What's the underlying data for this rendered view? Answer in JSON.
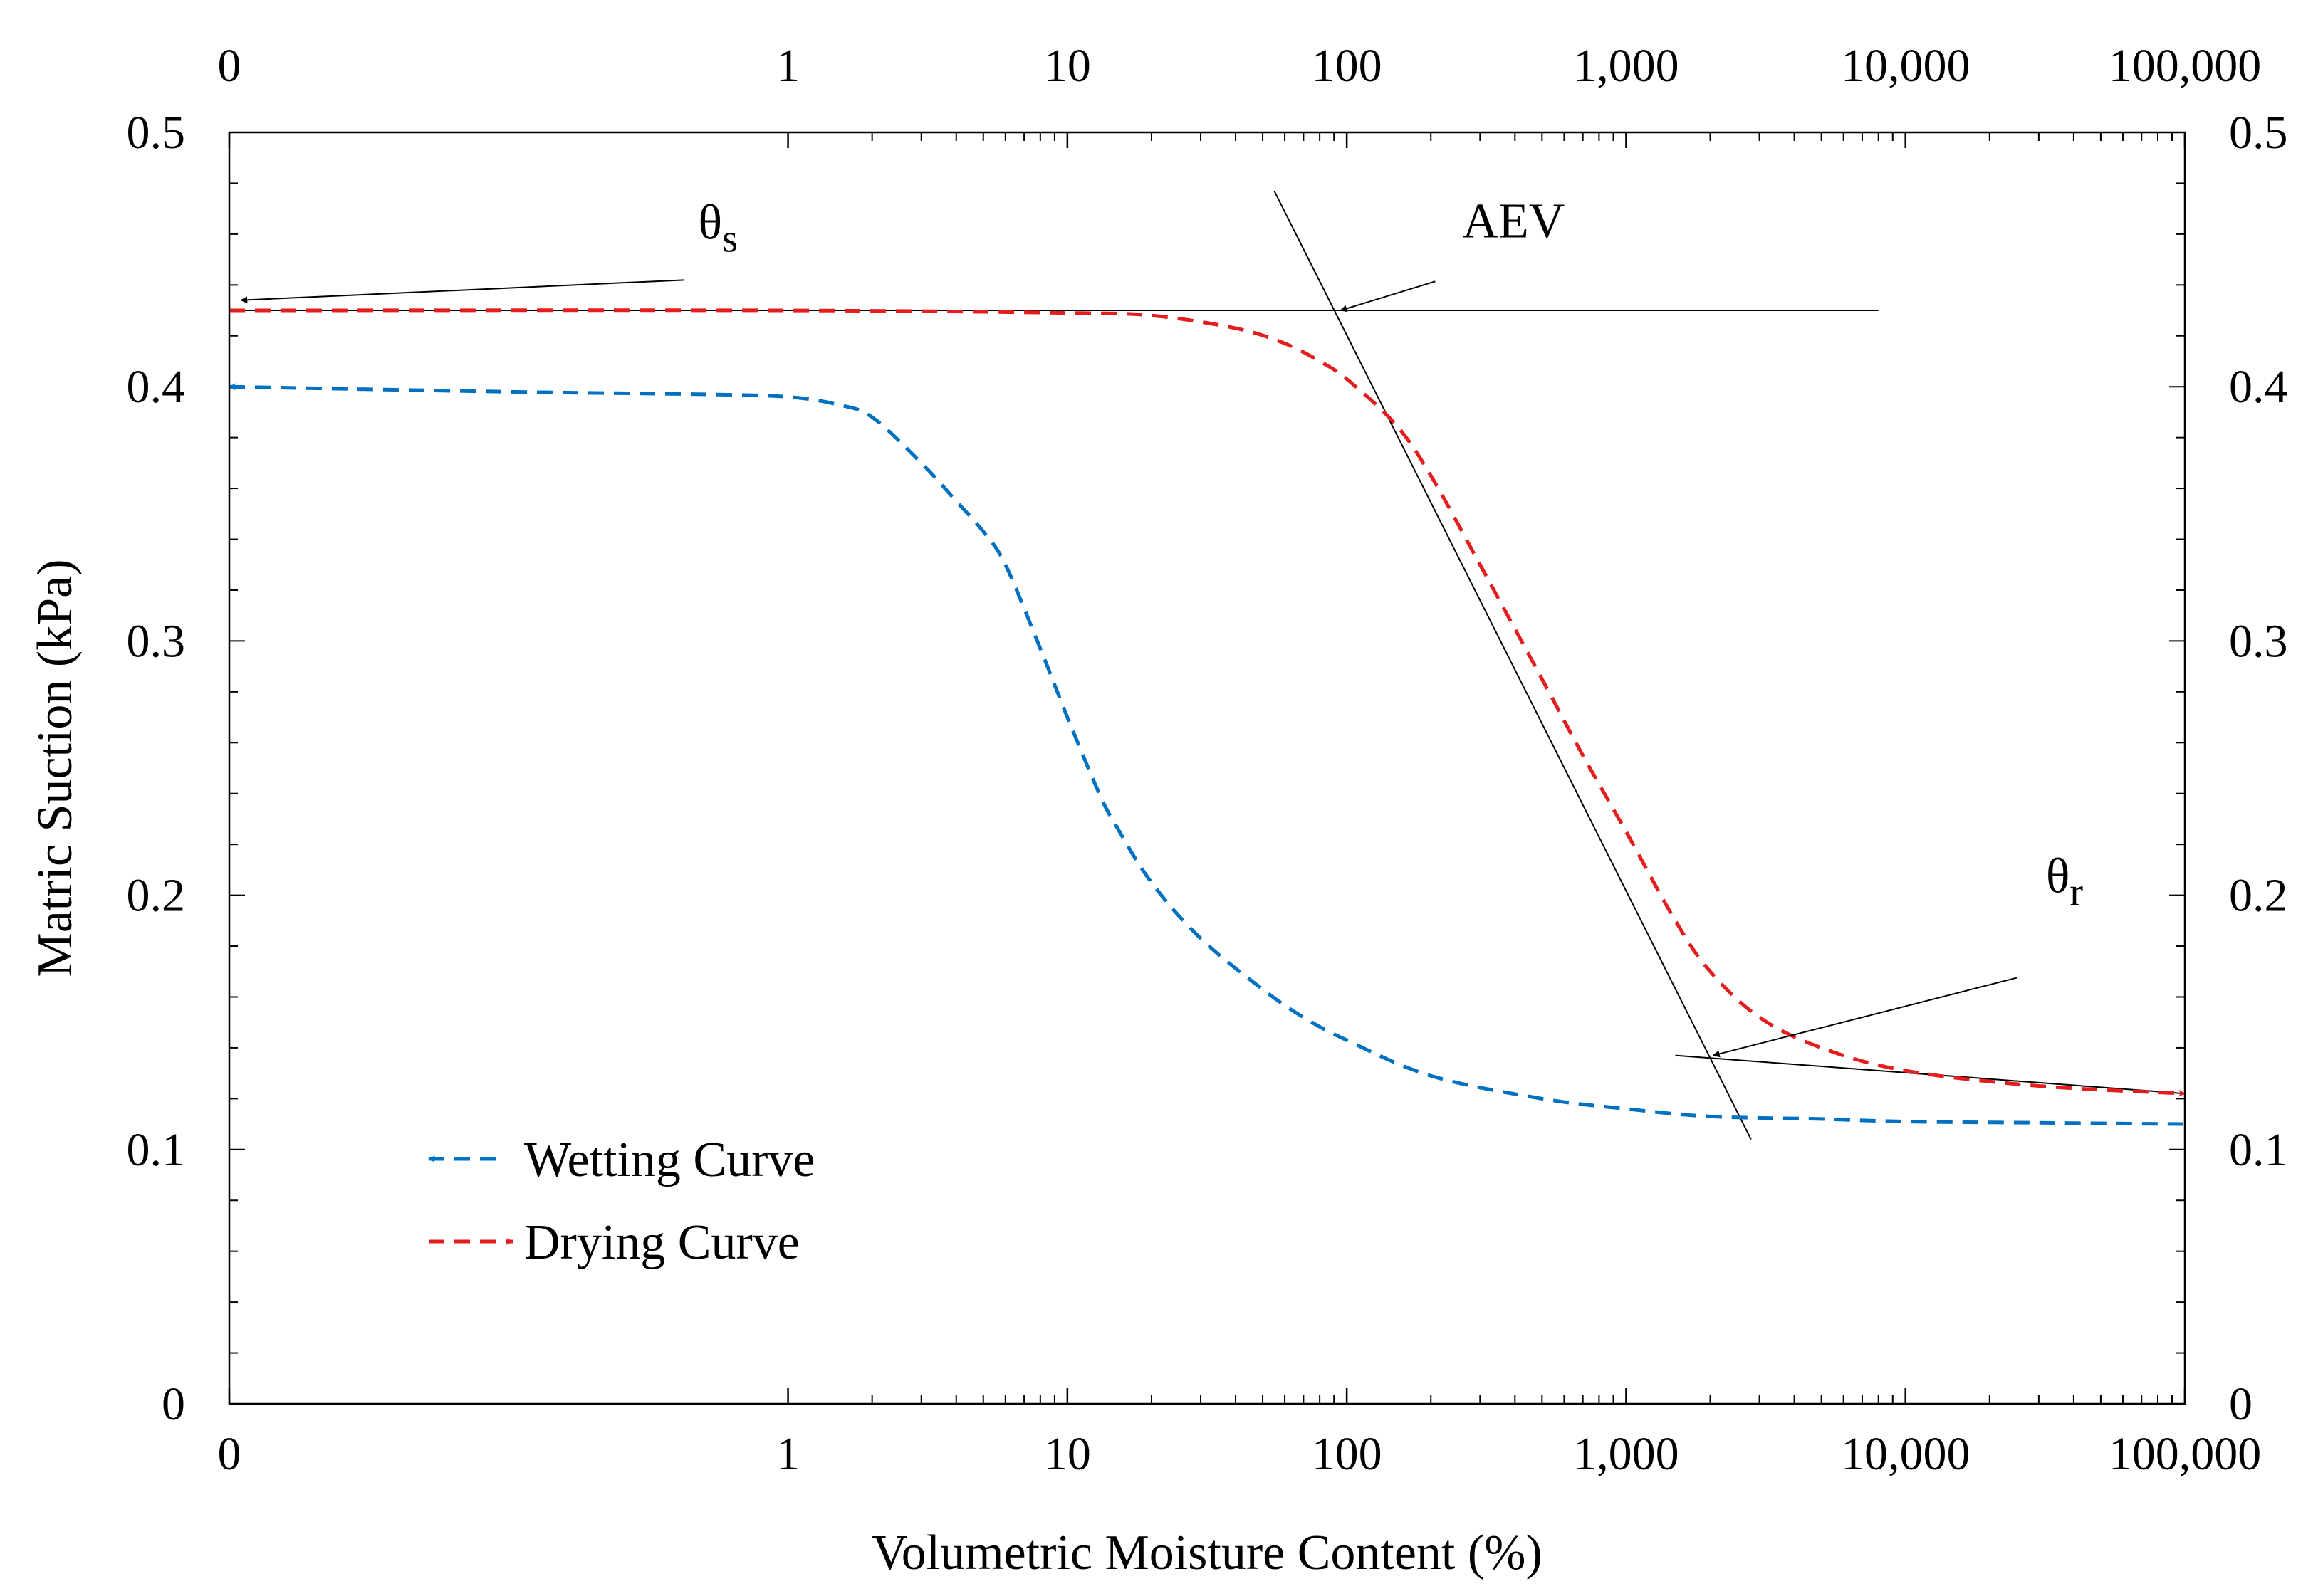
{
  "chart_data": {
    "type": "line",
    "xscale": "log",
    "xlabel": "Volumetric Moisture Content (%)",
    "ylabel": "Matric Suction (kPa)",
    "xlim": [
      0.01,
      100000
    ],
    "ylim": [
      0,
      0.5
    ],
    "x_ticks": [
      {
        "value": 0.01,
        "label": "0"
      },
      {
        "value": 1,
        "label": "1"
      },
      {
        "value": 10,
        "label": "10"
      },
      {
        "value": 100,
        "label": "100"
      },
      {
        "value": 1000,
        "label": "1,000"
      },
      {
        "value": 10000,
        "label": "10,000"
      },
      {
        "value": 100000,
        "label": "100,000"
      }
    ],
    "y_ticks": [
      {
        "value": 0,
        "label": "0"
      },
      {
        "value": 0.1,
        "label": "0.1"
      },
      {
        "value": 0.2,
        "label": "0.2"
      },
      {
        "value": 0.3,
        "label": "0.3"
      },
      {
        "value": 0.4,
        "label": "0.4"
      },
      {
        "value": 0.5,
        "label": "0.5"
      }
    ],
    "series": [
      {
        "name": "Wetting Curve",
        "color": "#0070C0",
        "dash": "dashed",
        "arrow": "start",
        "x": [
          0.01,
          0.1,
          0.5,
          1,
          1.5,
          2,
          3,
          4,
          5,
          6,
          8,
          10,
          13,
          15,
          20,
          30,
          50,
          70,
          100,
          200,
          500,
          1000,
          2000,
          5000,
          10000,
          30000,
          100000
        ],
        "y": [
          0.4,
          0.398,
          0.397,
          0.396,
          0.393,
          0.388,
          0.37,
          0.355,
          0.343,
          0.33,
          0.297,
          0.27,
          0.24,
          0.227,
          0.205,
          0.183,
          0.163,
          0.152,
          0.143,
          0.129,
          0.12,
          0.116,
          0.113,
          0.112,
          0.111,
          0.1105,
          0.11
        ]
      },
      {
        "name": "Drying Curve",
        "color": "#E41E1E",
        "dash": "dashed",
        "arrow": "end",
        "x": [
          0.01,
          1,
          10,
          20,
          40,
          60,
          80,
          100,
          150,
          200,
          300,
          500,
          700,
          1000,
          1500,
          2000,
          3000,
          5000,
          10000,
          30000,
          100000
        ],
        "y": [
          0.43,
          0.43,
          0.429,
          0.428,
          0.423,
          0.417,
          0.41,
          0.403,
          0.385,
          0.365,
          0.33,
          0.285,
          0.255,
          0.225,
          0.19,
          0.17,
          0.152,
          0.14,
          0.131,
          0.125,
          0.122
        ]
      }
    ],
    "guides": {
      "saturation_line": {
        "x": [
          0.01,
          8000
        ],
        "y": [
          0.43,
          0.43
        ]
      },
      "aev_tangent": {
        "x": [
          55,
          2800
        ],
        "y": [
          0.477,
          0.104
        ]
      },
      "residual_line": {
        "x": [
          1500,
          100000
        ],
        "y": [
          0.137,
          0.122
        ]
      }
    },
    "annotations": [
      {
        "key": "theta_s",
        "symbol": "θ",
        "sub": "s",
        "label_x": 0.45,
        "label_y": 0.447,
        "target_x": 0.011,
        "target_y": 0.434
      },
      {
        "key": "aev",
        "text": "AEV",
        "label_x": 500,
        "label_y": 0.447,
        "target_x": 95,
        "target_y": 0.43
      },
      {
        "key": "theta_r",
        "symbol": "θ",
        "sub": "r",
        "label_x": 30000,
        "label_y": 0.19,
        "target_x": 2050,
        "target_y": 0.137
      }
    ],
    "legend": {
      "position": "bottom-left",
      "entries": [
        "Wetting Curve",
        "Drying Curve"
      ]
    }
  }
}
